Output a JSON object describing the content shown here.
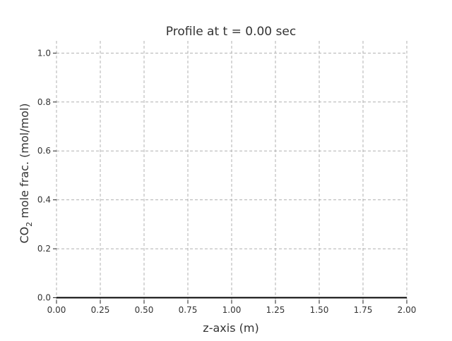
{
  "chart_data": {
    "type": "line",
    "title": "Profile at t = 0.00 sec",
    "xlabel": "z-axis (m)",
    "ylabel": {
      "prefix": "CO",
      "subscript": "2",
      "suffix": " mole frac. (mol/mol)"
    },
    "xlim": [
      0.0,
      2.0
    ],
    "ylim": [
      -0.01,
      1.05
    ],
    "xticks": [
      0.0,
      0.25,
      0.5,
      0.75,
      1.0,
      1.25,
      1.5,
      1.75,
      2.0
    ],
    "xtick_labels": [
      "0.00",
      "0.25",
      "0.50",
      "0.75",
      "1.00",
      "1.25",
      "1.50",
      "1.75",
      "2.00"
    ],
    "yticks": [
      0.0,
      0.2,
      0.4,
      0.6,
      0.8,
      1.0
    ],
    "ytick_labels": [
      "0.0",
      "0.2",
      "0.4",
      "0.6",
      "0.8",
      "1.0"
    ],
    "grid": true,
    "series": [
      {
        "x": [
          0.0,
          2.0
        ],
        "y": [
          0.0,
          0.0
        ]
      }
    ]
  },
  "colors": {
    "line": "#000000",
    "grid": "#b0b0b0",
    "axes": "#222222",
    "text": "#333333"
  }
}
